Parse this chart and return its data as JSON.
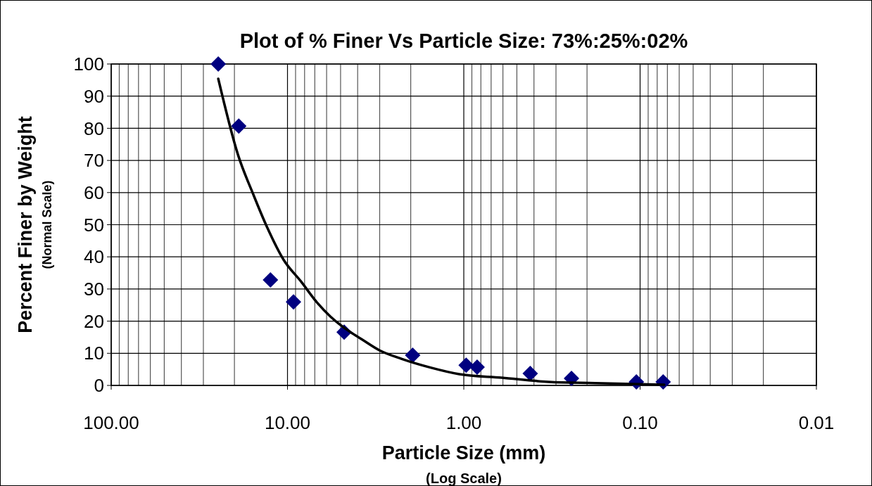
{
  "chart_data": {
    "type": "scatter",
    "title": "Plot of % Finer Vs Particle Size: 73%:25%:02%",
    "xlabel": "Particle Size (mm)\n(Log Scale)",
    "ylabel": "Percent Finer by Weight\n(Normal Scale)",
    "log": "x",
    "grid": true,
    "xlim": [
      100,
      0.01
    ],
    "xticks": [
      {
        "value": 100,
        "label": "100.00"
      },
      {
        "value": 90,
        "label": null
      },
      {
        "value": 80,
        "label": null
      },
      {
        "value": 70,
        "label": null
      },
      {
        "value": 60,
        "label": null
      },
      {
        "value": 50,
        "label": null
      },
      {
        "value": 40,
        "label": null
      },
      {
        "value": 30,
        "label": null
      },
      {
        "value": 20,
        "label": null
      },
      {
        "value": 10,
        "label": "10.00"
      },
      {
        "value": 9,
        "label": null
      },
      {
        "value": 8,
        "label": null
      },
      {
        "value": 7,
        "label": null
      },
      {
        "value": 6,
        "label": null
      },
      {
        "value": 5,
        "label": null
      },
      {
        "value": 4,
        "label": null
      },
      {
        "value": 3,
        "label": null
      },
      {
        "value": 2,
        "label": null
      },
      {
        "value": 1,
        "label": "1.00"
      },
      {
        "value": 0.9,
        "label": null
      },
      {
        "value": 0.8,
        "label": null
      },
      {
        "value": 0.7,
        "label": null
      },
      {
        "value": 0.6,
        "label": null
      },
      {
        "value": 0.5,
        "label": null
      },
      {
        "value": 0.4,
        "label": null
      },
      {
        "value": 0.3,
        "label": null
      },
      {
        "value": 0.2,
        "label": null
      },
      {
        "value": 0.1,
        "label": "0.10"
      },
      {
        "value": 0.09,
        "label": null
      },
      {
        "value": 0.08,
        "label": null
      },
      {
        "value": 0.07,
        "label": null
      },
      {
        "value": 0.06,
        "label": null
      },
      {
        "value": 0.05,
        "label": null
      },
      {
        "value": 0.04,
        "label": null
      },
      {
        "value": 0.03,
        "label": null
      },
      {
        "value": 0.02,
        "label": null
      },
      {
        "value": 0.01,
        "label": "0.01"
      }
    ],
    "ylim": [
      0,
      100
    ],
    "yticks": [
      0,
      10,
      20,
      30,
      40,
      50,
      60,
      70,
      80,
      90,
      100
    ],
    "series": [
      {
        "color": "#000080",
        "marker": "diamond",
        "x": [
          24.7,
          18.9,
          12.5,
          9.25,
          4.77,
          1.95,
          0.97,
          0.84,
          0.42,
          0.245,
          0.105,
          0.074
        ],
        "values": [
          100,
          80.7,
          32.8,
          26,
          16.6,
          9.4,
          6.3,
          5.7,
          3.7,
          2.2,
          1.1,
          1.1
        ]
      },
      {
        "type": "line",
        "color": "#000000",
        "marker": "none",
        "line_style": "solid",
        "x": [
          24.7,
          19.1,
          15.6,
          13,
          10.5,
          8.4,
          6.8,
          5.7,
          4.4,
          3.8,
          3,
          2.26,
          1.53,
          1.06,
          0.61,
          0.33,
          0.18,
          0.073
        ],
        "values": [
          95.4,
          71.8,
          59.3,
          49,
          39,
          32.4,
          25.8,
          21.4,
          16.6,
          14.4,
          10.9,
          8.3,
          5.5,
          3.5,
          2.4,
          1.1,
          0.7,
          0.2
        ]
      }
    ]
  }
}
